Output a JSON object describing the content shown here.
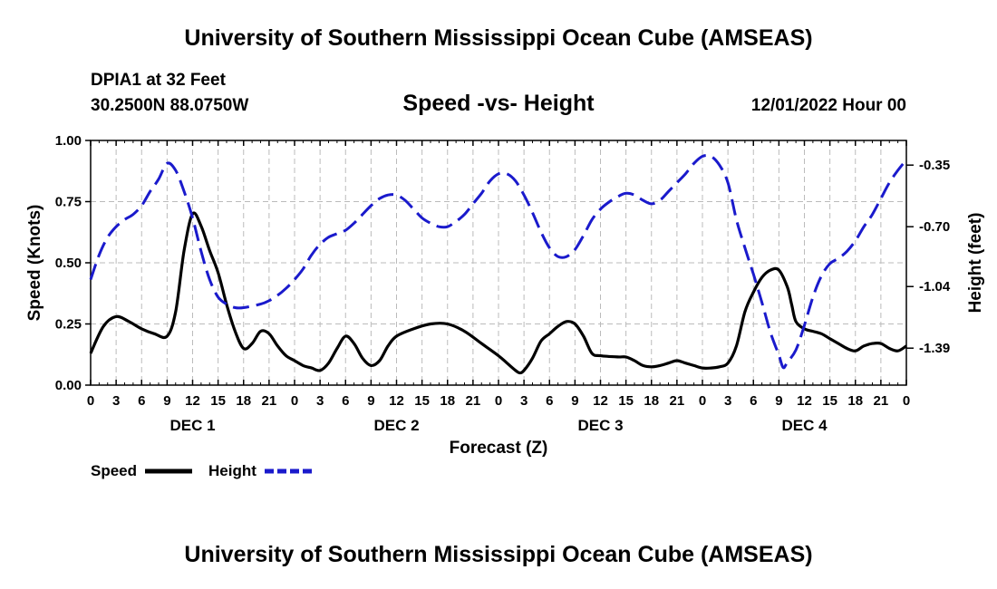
{
  "page": {
    "title_top": "University of Southern Mississippi Ocean Cube (AMSEAS)",
    "title_bottom": "University of Southern Mississippi Ocean Cube (AMSEAS)",
    "station": "DPIA1 at 32 Feet",
    "coords": "30.2500N  88.0750W",
    "datetime": "12/01/2022 Hour 00"
  },
  "colors": {
    "speed": "#000000",
    "height": "#1a1acc",
    "grid": "#bbbbbb"
  },
  "chart_data": {
    "type": "line",
    "title": "Speed -vs- Height",
    "xlabel": "Forecast (Z)",
    "ylabel": "Speed (Knots)",
    "ylabel_right": "Height (feet)",
    "x_range_hours": [
      0,
      96
    ],
    "x_tick_step_hours": 3,
    "x_tick_labels": [
      "0",
      "3",
      "6",
      "9",
      "12",
      "15",
      "18",
      "21",
      "0",
      "3",
      "6",
      "9",
      "12",
      "15",
      "18",
      "21",
      "0",
      "3",
      "6",
      "9",
      "12",
      "15",
      "18",
      "21",
      "0",
      "3",
      "6",
      "9",
      "12",
      "15",
      "18",
      "21",
      "0"
    ],
    "day_labels": [
      {
        "label": "DEC 1",
        "hour": 12
      },
      {
        "label": "DEC 2",
        "hour": 36
      },
      {
        "label": "DEC 3",
        "hour": 60
      },
      {
        "label": "DEC 4",
        "hour": 84
      }
    ],
    "ylim": [
      0,
      1.0
    ],
    "y_ticks": [
      0.0,
      0.25,
      0.5,
      0.75,
      1.0
    ],
    "y_tick_labels": [
      "0.00",
      "0.25",
      "0.50",
      "0.75",
      "1.00"
    ],
    "ylim_right": [
      -1.6,
      -0.21
    ],
    "y_ticks_right": [
      -1.39,
      -1.04,
      -0.7,
      -0.35
    ],
    "y_tick_labels_right": [
      "-1.39",
      "-1.04",
      "-0.70",
      "-0.35"
    ],
    "grid": true,
    "legend": [
      {
        "label": "Speed",
        "style": "solid"
      },
      {
        "label": "Height",
        "style": "dashed"
      }
    ],
    "series": [
      {
        "name": "Speed",
        "axis": "left",
        "points": [
          [
            0,
            0.13
          ],
          [
            1.5,
            0.24
          ],
          [
            3,
            0.28
          ],
          [
            4.5,
            0.26
          ],
          [
            6,
            0.23
          ],
          [
            7.5,
            0.21
          ],
          [
            9,
            0.2
          ],
          [
            10,
            0.3
          ],
          [
            11,
            0.55
          ],
          [
            12,
            0.7
          ],
          [
            13,
            0.65
          ],
          [
            14,
            0.55
          ],
          [
            15,
            0.46
          ],
          [
            16,
            0.33
          ],
          [
            17,
            0.22
          ],
          [
            18,
            0.15
          ],
          [
            19,
            0.17
          ],
          [
            20,
            0.22
          ],
          [
            21,
            0.21
          ],
          [
            22,
            0.16
          ],
          [
            23,
            0.12
          ],
          [
            24,
            0.1
          ],
          [
            25,
            0.08
          ],
          [
            26,
            0.07
          ],
          [
            27,
            0.06
          ],
          [
            28,
            0.09
          ],
          [
            29,
            0.15
          ],
          [
            30,
            0.2
          ],
          [
            31,
            0.17
          ],
          [
            32,
            0.11
          ],
          [
            33,
            0.08
          ],
          [
            34,
            0.1
          ],
          [
            35,
            0.16
          ],
          [
            36,
            0.2
          ],
          [
            38,
            0.23
          ],
          [
            40,
            0.25
          ],
          [
            42,
            0.25
          ],
          [
            44,
            0.22
          ],
          [
            46,
            0.17
          ],
          [
            48,
            0.12
          ],
          [
            49,
            0.09
          ],
          [
            50,
            0.06
          ],
          [
            50.5,
            0.05
          ],
          [
            51,
            0.06
          ],
          [
            52,
            0.11
          ],
          [
            53,
            0.18
          ],
          [
            54,
            0.21
          ],
          [
            55,
            0.24
          ],
          [
            56,
            0.26
          ],
          [
            57,
            0.25
          ],
          [
            58,
            0.2
          ],
          [
            59,
            0.13
          ],
          [
            60,
            0.12
          ],
          [
            62,
            0.115
          ],
          [
            63,
            0.115
          ],
          [
            64,
            0.1
          ],
          [
            65,
            0.08
          ],
          [
            66,
            0.075
          ],
          [
            67,
            0.08
          ],
          [
            68,
            0.09
          ],
          [
            69,
            0.1
          ],
          [
            70,
            0.09
          ],
          [
            71,
            0.08
          ],
          [
            72,
            0.07
          ],
          [
            73,
            0.07
          ],
          [
            74,
            0.075
          ],
          [
            75,
            0.09
          ],
          [
            76,
            0.16
          ],
          [
            77,
            0.3
          ],
          [
            78,
            0.38
          ],
          [
            79,
            0.44
          ],
          [
            80,
            0.47
          ],
          [
            81,
            0.47
          ],
          [
            82,
            0.4
          ],
          [
            82.5,
            0.33
          ],
          [
            83,
            0.26
          ],
          [
            84,
            0.23
          ],
          [
            85,
            0.22
          ],
          [
            86,
            0.21
          ],
          [
            87,
            0.19
          ],
          [
            88,
            0.17
          ],
          [
            89,
            0.15
          ],
          [
            90,
            0.14
          ],
          [
            91,
            0.16
          ],
          [
            92,
            0.17
          ],
          [
            93,
            0.17
          ],
          [
            94,
            0.15
          ],
          [
            95,
            0.14
          ],
          [
            96,
            0.16
          ]
        ]
      },
      {
        "name": "Height",
        "axis": "right",
        "points": [
          [
            0,
            -1.0
          ],
          [
            1,
            -0.86
          ],
          [
            2,
            -0.76
          ],
          [
            3,
            -0.7
          ],
          [
            4,
            -0.66
          ],
          [
            5,
            -0.63
          ],
          [
            6,
            -0.58
          ],
          [
            7,
            -0.5
          ],
          [
            8,
            -0.43
          ],
          [
            9,
            -0.34
          ],
          [
            10,
            -0.38
          ],
          [
            11,
            -0.5
          ],
          [
            12,
            -0.65
          ],
          [
            13,
            -0.84
          ],
          [
            14,
            -1.0
          ],
          [
            15,
            -1.1
          ],
          [
            16,
            -1.14
          ],
          [
            17,
            -1.16
          ],
          [
            18,
            -1.16
          ],
          [
            20,
            -1.14
          ],
          [
            21,
            -1.12
          ],
          [
            22,
            -1.09
          ],
          [
            23,
            -1.05
          ],
          [
            24,
            -1.0
          ],
          [
            25,
            -0.94
          ],
          [
            26,
            -0.86
          ],
          [
            27,
            -0.8
          ],
          [
            28,
            -0.76
          ],
          [
            29,
            -0.74
          ],
          [
            30,
            -0.72
          ],
          [
            31,
            -0.68
          ],
          [
            32,
            -0.63
          ],
          [
            33,
            -0.58
          ],
          [
            34,
            -0.54
          ],
          [
            35,
            -0.52
          ],
          [
            36,
            -0.52
          ],
          [
            37,
            -0.55
          ],
          [
            38,
            -0.6
          ],
          [
            39,
            -0.65
          ],
          [
            40,
            -0.68
          ],
          [
            41,
            -0.7
          ],
          [
            42,
            -0.7
          ],
          [
            43,
            -0.67
          ],
          [
            44,
            -0.63
          ],
          [
            45,
            -0.57
          ],
          [
            46,
            -0.51
          ],
          [
            47,
            -0.44
          ],
          [
            48,
            -0.4
          ],
          [
            49,
            -0.4
          ],
          [
            50,
            -0.44
          ],
          [
            51,
            -0.52
          ],
          [
            52,
            -0.62
          ],
          [
            53,
            -0.73
          ],
          [
            54,
            -0.82
          ],
          [
            55,
            -0.87
          ],
          [
            56,
            -0.87
          ],
          [
            57,
            -0.83
          ],
          [
            58,
            -0.75
          ],
          [
            59,
            -0.66
          ],
          [
            60,
            -0.6
          ],
          [
            61,
            -0.56
          ],
          [
            62,
            -0.53
          ],
          [
            63,
            -0.51
          ],
          [
            64,
            -0.52
          ],
          [
            65,
            -0.55
          ],
          [
            66,
            -0.57
          ],
          [
            67,
            -0.55
          ],
          [
            68,
            -0.5
          ],
          [
            69,
            -0.45
          ],
          [
            70,
            -0.4
          ],
          [
            71,
            -0.34
          ],
          [
            72,
            -0.3
          ],
          [
            73,
            -0.3
          ],
          [
            74,
            -0.35
          ],
          [
            75,
            -0.45
          ],
          [
            76,
            -0.66
          ],
          [
            77,
            -0.82
          ],
          [
            78,
            -0.97
          ],
          [
            79,
            -1.13
          ],
          [
            80,
            -1.3
          ],
          [
            81,
            -1.43
          ],
          [
            81.5,
            -1.5
          ],
          [
            82,
            -1.47
          ],
          [
            83,
            -1.4
          ],
          [
            84,
            -1.26
          ],
          [
            85,
            -1.1
          ],
          [
            86,
            -0.98
          ],
          [
            87,
            -0.91
          ],
          [
            88,
            -0.88
          ],
          [
            89,
            -0.84
          ],
          [
            90,
            -0.78
          ],
          [
            91,
            -0.7
          ],
          [
            92,
            -0.63
          ],
          [
            93,
            -0.54
          ],
          [
            94,
            -0.45
          ],
          [
            95,
            -0.38
          ],
          [
            96,
            -0.32
          ]
        ]
      }
    ]
  }
}
